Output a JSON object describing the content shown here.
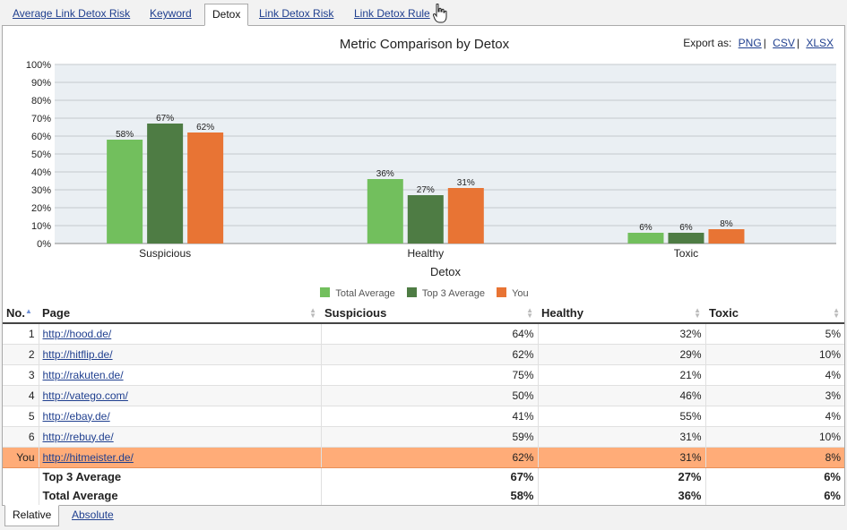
{
  "tabs": [
    {
      "label": "Average Link Detox Risk"
    },
    {
      "label": "Keyword"
    },
    {
      "label": "Detox"
    },
    {
      "label": "Link Detox Risk"
    },
    {
      "label": "Link Detox Rule"
    }
  ],
  "active_tab": "Detox",
  "export": {
    "label": "Export as:",
    "formats": [
      "PNG",
      "CSV",
      "XLSX"
    ],
    "separator": "|"
  },
  "colors": {
    "total_average": "#72bf5d",
    "top3_average": "#4e7c44",
    "you": "#e87434",
    "plot_bg": "#eaeff3",
    "you_row": "#ffac78"
  },
  "chart_data": {
    "type": "bar",
    "title": "Metric Comparison by Detox",
    "xlabel": "Detox",
    "ylabel": "",
    "categories": [
      "Suspicious",
      "Healthy",
      "Toxic"
    ],
    "series": [
      {
        "name": "Total Average",
        "values": [
          58,
          36,
          6
        ]
      },
      {
        "name": "Top 3 Average",
        "values": [
          67,
          27,
          6
        ]
      },
      {
        "name": "You",
        "values": [
          62,
          31,
          8
        ]
      }
    ],
    "ylim": [
      0,
      100
    ],
    "yticks": [
      "0%",
      "10%",
      "20%",
      "30%",
      "40%",
      "50%",
      "60%",
      "70%",
      "80%",
      "90%",
      "100%"
    ],
    "value_suffix": "%",
    "grid": true,
    "legend_position": "bottom"
  },
  "table": {
    "columns": [
      "No.",
      "Page",
      "Suspicious",
      "Healthy",
      "Toxic"
    ],
    "rows": [
      {
        "no": "1",
        "page": "http://hood.de/",
        "suspicious": "64%",
        "healthy": "32%",
        "toxic": "5%"
      },
      {
        "no": "2",
        "page": "http://hitflip.de/",
        "suspicious": "62%",
        "healthy": "29%",
        "toxic": "10%"
      },
      {
        "no": "3",
        "page": "http://rakuten.de/",
        "suspicious": "75%",
        "healthy": "21%",
        "toxic": "4%"
      },
      {
        "no": "4",
        "page": "http://vatego.com/",
        "suspicious": "50%",
        "healthy": "46%",
        "toxic": "3%"
      },
      {
        "no": "5",
        "page": "http://ebay.de/",
        "suspicious": "41%",
        "healthy": "55%",
        "toxic": "4%"
      },
      {
        "no": "6",
        "page": "http://rebuy.de/",
        "suspicious": "59%",
        "healthy": "31%",
        "toxic": "10%"
      }
    ],
    "you_row": {
      "no": "You",
      "page": "http://hitmeister.de/",
      "suspicious": "62%",
      "healthy": "31%",
      "toxic": "8%"
    },
    "aggregates": [
      {
        "label": "Top 3 Average",
        "suspicious": "67%",
        "healthy": "27%",
        "toxic": "6%"
      },
      {
        "label": "Total Average",
        "suspicious": "58%",
        "healthy": "36%",
        "toxic": "6%"
      }
    ]
  },
  "bottom_tabs": [
    {
      "label": "Relative"
    },
    {
      "label": "Absolute"
    }
  ],
  "active_bottom_tab": "Relative"
}
